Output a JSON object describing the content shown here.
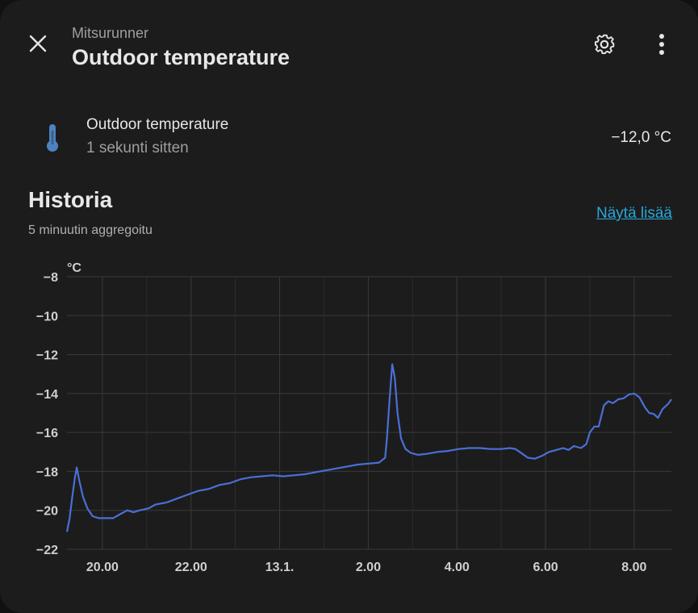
{
  "header": {
    "subtitle": "Mitsurunner",
    "title": "Outdoor temperature",
    "close_icon": "close-icon",
    "settings_icon": "gear-icon",
    "menu_icon": "more-vertical-icon"
  },
  "entity": {
    "icon": "thermometer-icon",
    "name": "Outdoor temperature",
    "last_changed": "1 sekunti sitten",
    "value": "−12,0 °C"
  },
  "history": {
    "title": "Historia",
    "subtitle": "5 minuutin aggregoitu",
    "show_more_label": "Näytä lisää"
  },
  "colors": {
    "line": "#4a6fd6",
    "link": "#27a8d8",
    "background": "#1c1c1c"
  },
  "chart_data": {
    "type": "line",
    "ylabel": "°C",
    "ylim": [
      -22,
      -8
    ],
    "yticks": [
      "−8",
      "−10",
      "−12",
      "−14",
      "−16",
      "−18",
      "−20",
      "−22"
    ],
    "xticks": [
      "20.00",
      "22.00",
      "13.1.",
      "2.00",
      "4.00",
      "6.00",
      "8.00"
    ],
    "xlim": [
      -1.0,
      33.1
    ],
    "grid": true,
    "series": [
      {
        "values": [
          [
            -1.0,
            -21.1
          ],
          [
            -0.85,
            -20.4
          ],
          [
            -0.7,
            -19.3
          ],
          [
            -0.55,
            -18.3
          ],
          [
            -0.45,
            -17.8
          ],
          [
            -0.3,
            -18.5
          ],
          [
            -0.1,
            -19.3
          ],
          [
            0.15,
            -19.9
          ],
          [
            0.45,
            -20.3
          ],
          [
            0.8,
            -20.4
          ],
          [
            1.2,
            -20.4
          ],
          [
            1.6,
            -20.4
          ],
          [
            2.0,
            -20.2
          ],
          [
            2.4,
            -20.0
          ],
          [
            2.75,
            -20.1
          ],
          [
            3.1,
            -20.0
          ],
          [
            3.6,
            -19.9
          ],
          [
            4.0,
            -19.7
          ],
          [
            4.6,
            -19.6
          ],
          [
            5.2,
            -19.4
          ],
          [
            5.8,
            -19.2
          ],
          [
            6.4,
            -19.0
          ],
          [
            7.0,
            -18.9
          ],
          [
            7.6,
            -18.7
          ],
          [
            8.2,
            -18.6
          ],
          [
            8.8,
            -18.4
          ],
          [
            9.4,
            -18.3
          ],
          [
            10.0,
            -18.25
          ],
          [
            10.6,
            -18.2
          ],
          [
            11.2,
            -18.25
          ],
          [
            11.8,
            -18.2
          ],
          [
            12.4,
            -18.15
          ],
          [
            13.0,
            -18.05
          ],
          [
            13.6,
            -17.95
          ],
          [
            14.2,
            -17.85
          ],
          [
            14.8,
            -17.75
          ],
          [
            15.4,
            -17.65
          ],
          [
            16.0,
            -17.6
          ],
          [
            16.6,
            -17.55
          ],
          [
            16.95,
            -17.3
          ],
          [
            17.05,
            -16.3
          ],
          [
            17.2,
            -14.3
          ],
          [
            17.35,
            -12.5
          ],
          [
            17.5,
            -13.2
          ],
          [
            17.65,
            -15.0
          ],
          [
            17.85,
            -16.3
          ],
          [
            18.1,
            -16.85
          ],
          [
            18.4,
            -17.05
          ],
          [
            18.8,
            -17.15
          ],
          [
            19.3,
            -17.1
          ],
          [
            19.9,
            -17.0
          ],
          [
            20.5,
            -16.95
          ],
          [
            21.1,
            -16.85
          ],
          [
            21.7,
            -16.8
          ],
          [
            22.3,
            -16.8
          ],
          [
            22.9,
            -16.85
          ],
          [
            23.5,
            -16.85
          ],
          [
            24.0,
            -16.8
          ],
          [
            24.3,
            -16.85
          ],
          [
            24.7,
            -17.1
          ],
          [
            25.0,
            -17.3
          ],
          [
            25.4,
            -17.35
          ],
          [
            25.8,
            -17.2
          ],
          [
            26.2,
            -17.0
          ],
          [
            26.6,
            -16.9
          ],
          [
            27.0,
            -16.8
          ],
          [
            27.3,
            -16.9
          ],
          [
            27.6,
            -16.7
          ],
          [
            28.0,
            -16.8
          ],
          [
            28.3,
            -16.6
          ],
          [
            28.5,
            -16.0
          ],
          [
            28.75,
            -15.7
          ],
          [
            29.0,
            -15.7
          ],
          [
            29.3,
            -14.6
          ],
          [
            29.55,
            -14.4
          ],
          [
            29.8,
            -14.5
          ],
          [
            30.1,
            -14.3
          ],
          [
            30.4,
            -14.25
          ],
          [
            30.7,
            -14.05
          ],
          [
            31.0,
            -14.0
          ],
          [
            31.3,
            -14.2
          ],
          [
            31.6,
            -14.7
          ],
          [
            31.85,
            -15.0
          ],
          [
            32.1,
            -15.05
          ],
          [
            32.35,
            -15.25
          ],
          [
            32.6,
            -14.8
          ],
          [
            32.9,
            -14.55
          ],
          [
            33.1,
            -14.3
          ]
        ]
      }
    ]
  }
}
